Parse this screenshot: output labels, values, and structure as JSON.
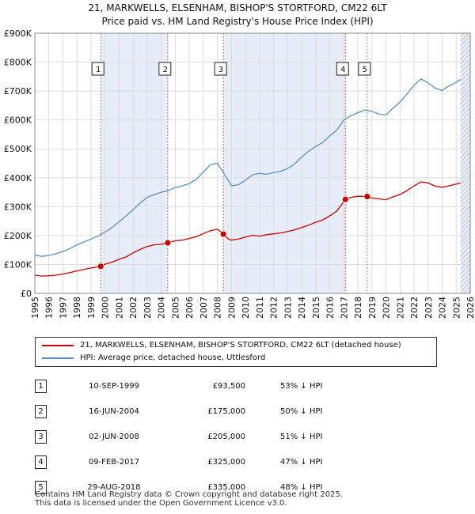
{
  "title_line1": "21, MARKWELLS, ELSENHAM, BISHOP'S STORTFORD, CM22 6LT",
  "title_line2": "Price paid vs. HM Land Registry's House Price Index (HPI)",
  "chart_data": {
    "type": "line",
    "title": "21, MARKWELLS, ELSENHAM, BISHOP'S STORTFORD, CM22 6LT — Price paid vs. HM Land Registry's House Price Index (HPI)",
    "xlim": [
      1995,
      2026
    ],
    "ylim": [
      0,
      900000
    ],
    "x_ticks": [
      "1995",
      "1996",
      "1997",
      "1998",
      "1999",
      "2000",
      "2001",
      "2002",
      "2003",
      "2004",
      "2005",
      "2006",
      "2007",
      "2008",
      "2009",
      "2010",
      "2011",
      "2012",
      "2013",
      "2014",
      "2015",
      "2016",
      "2017",
      "2018",
      "2019",
      "2020",
      "2021",
      "2022",
      "2023",
      "2024",
      "2025",
      "2026"
    ],
    "y_ticks": [
      {
        "value": 0,
        "label": "£0"
      },
      {
        "value": 100000,
        "label": "£100K"
      },
      {
        "value": 200000,
        "label": "£200K"
      },
      {
        "value": 300000,
        "label": "£300K"
      },
      {
        "value": 400000,
        "label": "£400K"
      },
      {
        "value": 500000,
        "label": "£500K"
      },
      {
        "value": 600000,
        "label": "£600K"
      },
      {
        "value": 700000,
        "label": "£700K"
      },
      {
        "value": 800000,
        "label": "£800K"
      },
      {
        "value": 900000,
        "label": "£900K"
      }
    ],
    "grid": true,
    "series": [
      {
        "name": "21, MARKWELLS, ELSENHAM, BISHOP'S STORTFORD, CM22 6LT (detached house)",
        "color": "#cc0000",
        "x": [
          1995.0,
          1995.5,
          1996.0,
          1996.5,
          1997.0,
          1997.5,
          1998.0,
          1998.5,
          1999.0,
          1999.5,
          1999.69,
          2000.0,
          2000.5,
          2001.0,
          2001.5,
          2002.0,
          2002.5,
          2003.0,
          2003.5,
          2004.0,
          2004.46,
          2005.0,
          2005.5,
          2006.0,
          2006.5,
          2007.0,
          2007.5,
          2008.0,
          2008.42,
          2008.8,
          2009.0,
          2009.5,
          2010.0,
          2010.5,
          2011.0,
          2011.5,
          2012.0,
          2012.5,
          2013.0,
          2013.5,
          2014.0,
          2014.5,
          2015.0,
          2015.5,
          2016.0,
          2016.5,
          2017.11,
          2017.5,
          2018.0,
          2018.66,
          2019.0,
          2019.5,
          2020.0,
          2020.5,
          2021.0,
          2021.5,
          2022.0,
          2022.5,
          2023.0,
          2023.5,
          2024.0,
          2024.5,
          2025.0,
          2025.3
        ],
        "y": [
          63000,
          60000,
          61000,
          63000,
          67000,
          72000,
          78000,
          83000,
          88000,
          92000,
          93500,
          101000,
          108000,
          118000,
          126000,
          140000,
          152000,
          162000,
          168000,
          170000,
          175000,
          182000,
          184000,
          190000,
          196000,
          207000,
          217000,
          222000,
          205000,
          187000,
          184000,
          188000,
          195000,
          201000,
          198000,
          203000,
          206000,
          209000,
          214000,
          220000,
          228000,
          236000,
          246000,
          254000,
          268000,
          285000,
          325000,
          332000,
          336000,
          335000,
          330000,
          327000,
          324000,
          334000,
          342000,
          356000,
          372000,
          386000,
          382000,
          371000,
          367000,
          372000,
          378000,
          382000
        ]
      },
      {
        "name": "HPI: Average price, detached house, Uttlesford",
        "color": "#5b8fc9",
        "x": [
          1995.0,
          1995.5,
          1996.0,
          1996.5,
          1997.0,
          1997.5,
          1998.0,
          1998.5,
          1999.0,
          1999.5,
          2000.0,
          2000.5,
          2001.0,
          2001.5,
          2002.0,
          2002.5,
          2003.0,
          2003.5,
          2004.0,
          2004.5,
          2005.0,
          2005.5,
          2006.0,
          2006.5,
          2007.0,
          2007.5,
          2008.0,
          2008.5,
          2009.0,
          2009.5,
          2010.0,
          2010.5,
          2011.0,
          2011.5,
          2012.0,
          2012.5,
          2013.0,
          2013.5,
          2014.0,
          2014.5,
          2015.0,
          2015.5,
          2016.0,
          2016.5,
          2017.0,
          2017.5,
          2018.0,
          2018.5,
          2019.0,
          2019.5,
          2020.0,
          2020.5,
          2021.0,
          2021.5,
          2022.0,
          2022.5,
          2023.0,
          2023.5,
          2024.0,
          2024.5,
          2025.0,
          2025.3
        ],
        "y": [
          132000,
          128000,
          131000,
          137000,
          145000,
          155000,
          168000,
          178000,
          188000,
          198000,
          212000,
          228000,
          248000,
          268000,
          290000,
          312000,
          332000,
          342000,
          350000,
          356000,
          366000,
          372000,
          380000,
          395000,
          420000,
          445000,
          450000,
          412000,
          372000,
          376000,
          392000,
          410000,
          415000,
          412000,
          418000,
          422000,
          432000,
          448000,
          472000,
          492000,
          508000,
          522000,
          545000,
          565000,
          600000,
          615000,
          625000,
          635000,
          630000,
          620000,
          618000,
          640000,
          662000,
          690000,
          720000,
          742000,
          728000,
          710000,
          702000,
          718000,
          730000,
          740000
        ]
      }
    ],
    "sales": [
      {
        "marker": "1",
        "x": 1999.69,
        "y": 93500
      },
      {
        "marker": "2",
        "x": 2004.46,
        "y": 175000
      },
      {
        "marker": "3",
        "x": 2008.42,
        "y": 205000
      },
      {
        "marker": "4",
        "x": 2017.11,
        "y": 325000
      },
      {
        "marker": "5",
        "x": 2018.66,
        "y": 335000
      }
    ],
    "shaded_periods": [
      [
        1999.69,
        2004.46
      ],
      [
        2008.42,
        2017.11
      ],
      [
        2025.3,
        2026.0
      ]
    ]
  },
  "legend": {
    "property_label": "21, MARKWELLS, ELSENHAM, BISHOP'S STORTFORD, CM22 6LT (detached house)",
    "hpi_label": "HPI: Average price, detached house, Uttlesford"
  },
  "transactions": [
    {
      "num": "1",
      "date": "10-SEP-1999",
      "price": "£93,500",
      "hpi": "53% ↓ HPI"
    },
    {
      "num": "2",
      "date": "16-JUN-2004",
      "price": "£175,000",
      "hpi": "50% ↓ HPI"
    },
    {
      "num": "3",
      "date": "02-JUN-2008",
      "price": "£205,000",
      "hpi": "51% ↓ HPI"
    },
    {
      "num": "4",
      "date": "09-FEB-2017",
      "price": "£325,000",
      "hpi": "47% ↓ HPI"
    },
    {
      "num": "5",
      "date": "29-AUG-2018",
      "price": "£335,000",
      "hpi": "48% ↓ HPI"
    }
  ],
  "footer": {
    "line1": "Contains HM Land Registry data © Crown copyright and database right 2025.",
    "line2": "This data is licensed under the Open Government Licence v3.0."
  }
}
